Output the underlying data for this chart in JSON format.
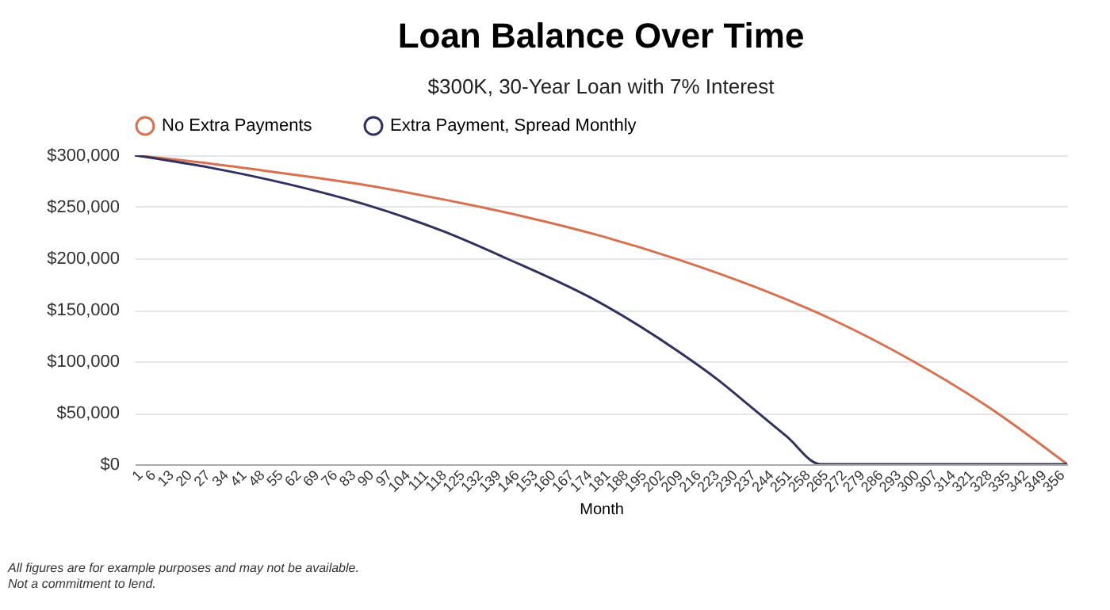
{
  "chart_data": {
    "type": "line",
    "title": "Loan Balance Over Time",
    "subtitle": "$300K, 30-Year Loan with 7% Interest",
    "xlabel": "Month",
    "series": [
      {
        "name": "No Extra Payments",
        "color": "#d9704e",
        "x": [
          1,
          30,
          60,
          90,
          120,
          150,
          180,
          210,
          240,
          270,
          300,
          330,
          360
        ],
        "values": [
          300000,
          292000,
          282000,
          271000,
          257000,
          241000,
          222000,
          199000,
          172000,
          140000,
          101000,
          55000,
          0
        ]
      },
      {
        "name": "Extra Payment, Spread Monthly",
        "color": "#2f3162",
        "x": [
          1,
          30,
          60,
          90,
          120,
          144,
          180,
          210,
          225,
          240,
          252,
          265,
          300,
          360
        ],
        "values": [
          300000,
          288000,
          272000,
          252000,
          226000,
          200000,
          157000,
          110000,
          83000,
          52000,
          27000,
          0,
          0,
          0
        ]
      }
    ],
    "xlim": [
      1,
      360
    ],
    "xticks": [
      1,
      6,
      13,
      20,
      27,
      34,
      41,
      48,
      55,
      62,
      69,
      76,
      83,
      90,
      97,
      104,
      111,
      118,
      125,
      132,
      139,
      146,
      153,
      160,
      167,
      174,
      181,
      188,
      195,
      202,
      209,
      216,
      223,
      230,
      237,
      244,
      251,
      258,
      265,
      272,
      279,
      286,
      293,
      300,
      307,
      314,
      321,
      328,
      335,
      342,
      349,
      356
    ],
    "ylim": [
      0,
      300000
    ],
    "yticks": [
      {
        "value": 0,
        "label": "$0"
      },
      {
        "value": 50000,
        "label": "$50,000"
      },
      {
        "value": 100000,
        "label": "$100,000"
      },
      {
        "value": 150000,
        "label": "$150,000"
      },
      {
        "value": 200000,
        "label": "$200,000"
      },
      {
        "value": 250000,
        "label": "$250,000"
      },
      {
        "value": 300000,
        "label": "$300,000"
      }
    ],
    "grid": "y",
    "legend": "top",
    "marker": "none",
    "line_style": "solid",
    "annotations": [
      "All figures are for example purposes and may not be available.",
      "Not a commitment to lend."
    ]
  }
}
